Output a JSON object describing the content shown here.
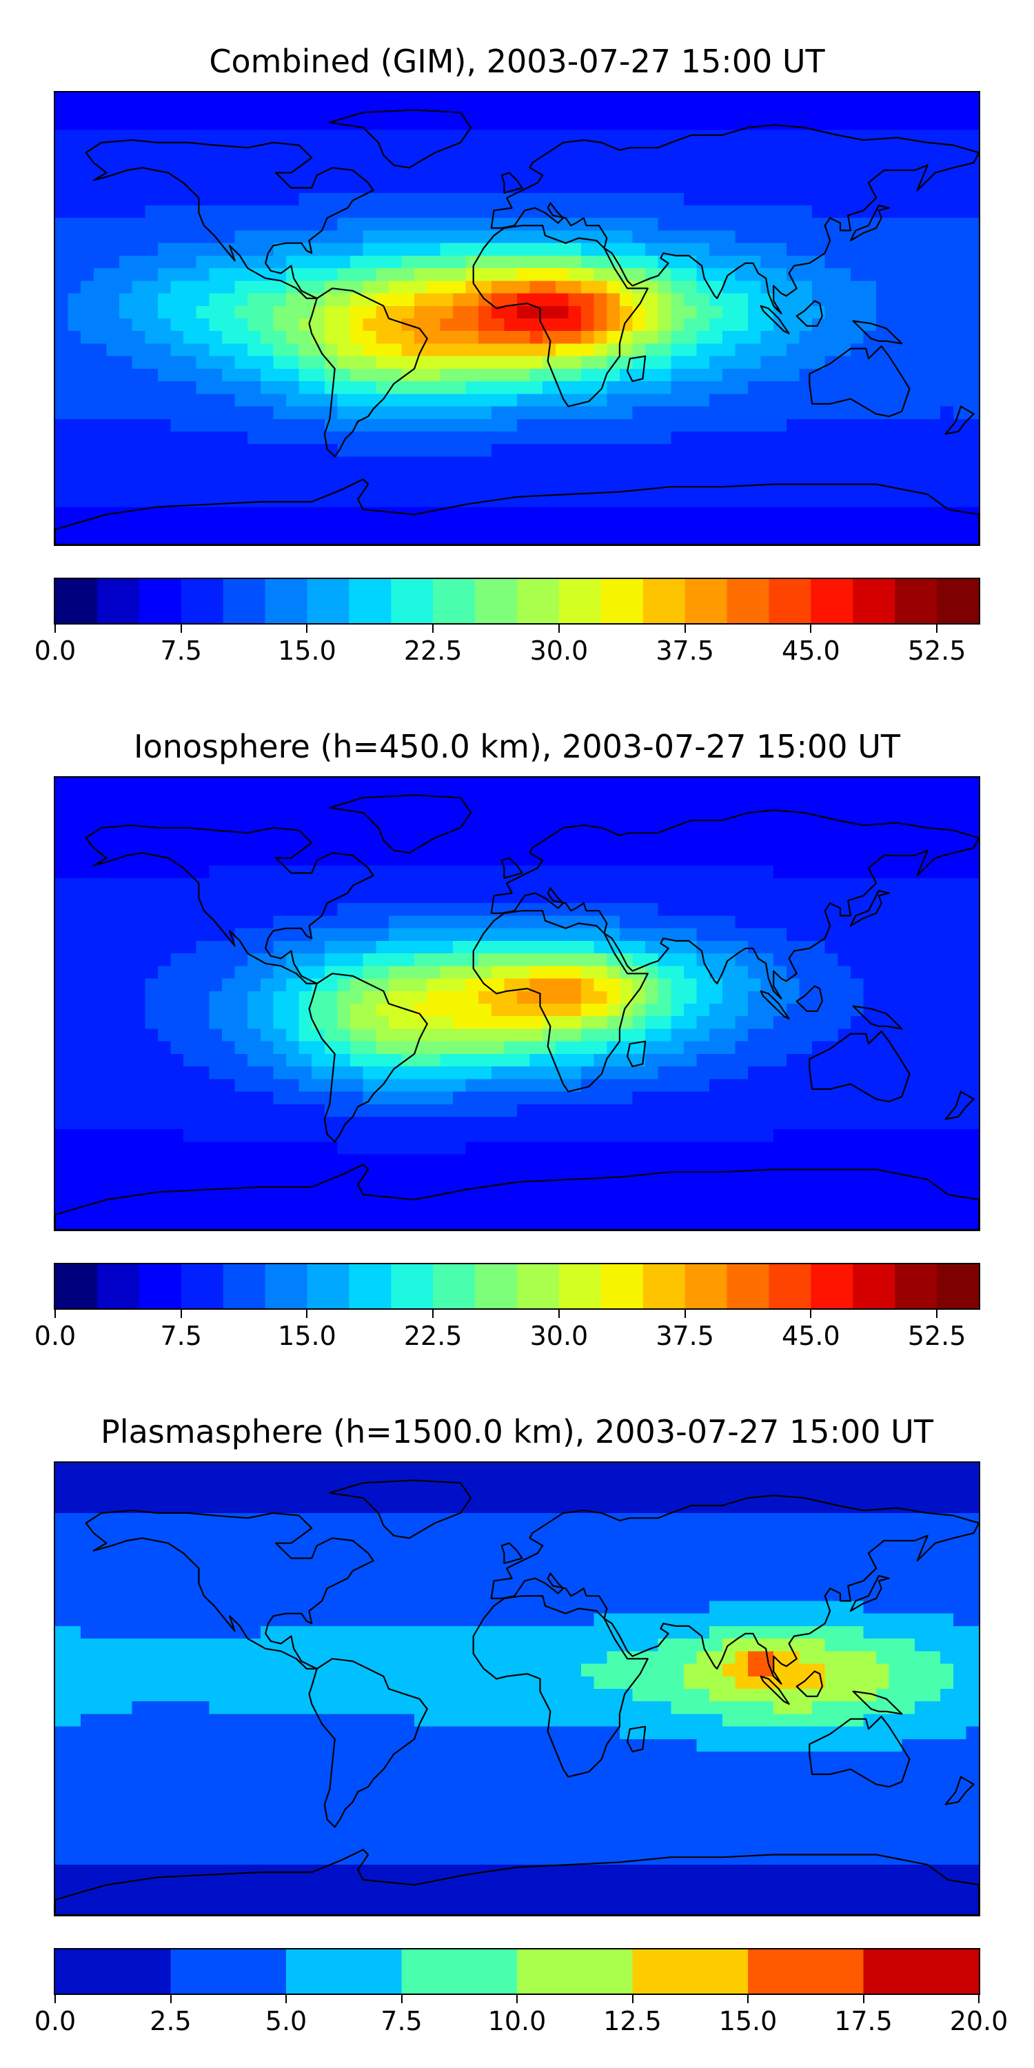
{
  "chart_data": [
    {
      "type": "heatmap",
      "title": "Combined (GIM), 2003-07-27 15:00 UT",
      "colorbar": {
        "levels": [
          0.0,
          2.5,
          5.0,
          7.5,
          10.0,
          12.5,
          15.0,
          17.5,
          20.0,
          22.5,
          25.0,
          27.5,
          30.0,
          32.5,
          35.0,
          37.5,
          40.0,
          42.5,
          45.0,
          47.5,
          50.0,
          52.5,
          55.0
        ],
        "colors": [
          "#00007f",
          "#0000c8",
          "#0000ff",
          "#0020ff",
          "#0050ff",
          "#0080ff",
          "#00a8ff",
          "#00d4ff",
          "#1ef8e0",
          "#49ffad",
          "#7dff7a",
          "#a8ff4c",
          "#d4ff23",
          "#f8f500",
          "#ffc400",
          "#ff9a00",
          "#ff6f00",
          "#ff4400",
          "#ff1400",
          "#d40000",
          "#9b0000",
          "#7f0000"
        ],
        "ticks": [
          "0.0",
          "7.5",
          "15.0",
          "22.5",
          "30.0",
          "37.5",
          "45.0",
          "52.5"
        ],
        "tick_values": [
          0.0,
          7.5,
          15.0,
          22.5,
          30.0,
          37.5,
          45.0,
          52.5
        ],
        "range": [
          0.0,
          55.0
        ]
      },
      "max_value": 47,
      "max_region": "Central Africa / Equatorial Atlantic",
      "min_value": 2,
      "min_region": "South polar region"
    },
    {
      "type": "heatmap",
      "title": "Ionosphere  (h=450.0 km), 2003-07-27 15:00 UT",
      "colorbar": {
        "levels": [
          0.0,
          2.5,
          5.0,
          7.5,
          10.0,
          12.5,
          15.0,
          17.5,
          20.0,
          22.5,
          25.0,
          27.5,
          30.0,
          32.5,
          35.0,
          37.5,
          40.0,
          42.5,
          45.0,
          47.5,
          50.0,
          52.5,
          55.0
        ],
        "colors": [
          "#00007f",
          "#0000c8",
          "#0000ff",
          "#0020ff",
          "#0050ff",
          "#0080ff",
          "#00a8ff",
          "#00d4ff",
          "#1ef8e0",
          "#49ffad",
          "#7dff7a",
          "#a8ff4c",
          "#d4ff23",
          "#f8f500",
          "#ffc400",
          "#ff9a00",
          "#ff6f00",
          "#ff4400",
          "#ff1400",
          "#d40000",
          "#9b0000",
          "#7f0000"
        ],
        "ticks": [
          "0.0",
          "7.5",
          "15.0",
          "22.5",
          "30.0",
          "37.5",
          "45.0",
          "52.5"
        ],
        "tick_values": [
          0.0,
          7.5,
          15.0,
          22.5,
          30.0,
          37.5,
          45.0,
          52.5
        ],
        "range": [
          0.0,
          55.0
        ]
      },
      "max_value": 40,
      "max_region": "Central Africa",
      "min_value": 2,
      "min_region": "South polar region"
    },
    {
      "type": "heatmap",
      "title": "Plasmasphere (h=1500.0 km), 2003-07-27 15:00 UT",
      "colorbar": {
        "levels": [
          0.0,
          2.5,
          5.0,
          7.5,
          10.0,
          12.5,
          15.0,
          17.5,
          20.0
        ],
        "colors": [
          "#0010c8",
          "#0050ff",
          "#00c0ff",
          "#49ffad",
          "#a8ff4c",
          "#ffcc00",
          "#ff5a00",
          "#c80000"
        ],
        "ticks": [
          "0.0",
          "2.5",
          "5.0",
          "7.5",
          "10.0",
          "12.5",
          "15.0",
          "17.5",
          "20.0"
        ],
        "tick_values": [
          0.0,
          2.5,
          5.0,
          7.5,
          10.0,
          12.5,
          15.0,
          17.5,
          20.0
        ],
        "range": [
          0.0,
          20.0
        ]
      },
      "max_value": 15,
      "max_region": "Southeast Asia",
      "min_value": 1,
      "min_region": "Polar regions"
    }
  ]
}
